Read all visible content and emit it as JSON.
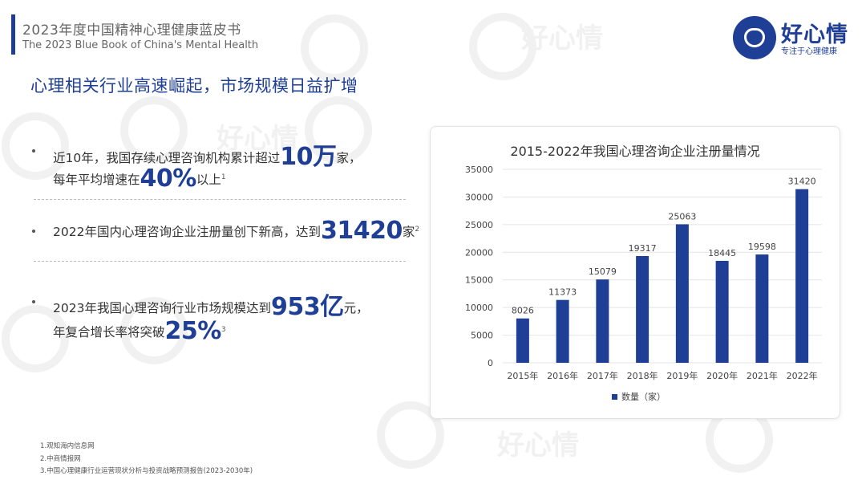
{
  "header": {
    "title_cn": "2023年度中国精神心理健康蓝皮书",
    "title_en": "The 2023 Blue Book of China's Mental Health"
  },
  "logo": {
    "name": "好心情",
    "slogan": "专注于心理健康"
  },
  "section_title": "心理相关行业高速崛起，市场规模日益扩增",
  "bullets": {
    "b1": {
      "l1_pre": "近10年，我国存续心理咨询机构累计超过",
      "l1_big": "10万",
      "l1_post": "家，",
      "l2_pre": "每年平均增速在",
      "l2_big": "40%",
      "l2_post": "以上",
      "l2_sup": "1"
    },
    "b2": {
      "pre": "2022年国内心理咨询企业注册量创下新高，达到",
      "big": "31420",
      "post": "家",
      "sup": "2"
    },
    "b3": {
      "l1_pre": "2023年我国心理咨询行业市场规模达到",
      "l1_big1": "953",
      "l1_big2": "亿",
      "l1_post": "元，",
      "l2_pre": "年复合增长率将突破",
      "l2_big": "25%",
      "l2_sup": "3"
    }
  },
  "footnotes": [
    "1.观知海内信息网",
    "2.中商情报网",
    "3.中国心理健康行业运营现状分析与投资战略预测报告(2023-2030年)"
  ],
  "chart_data": {
    "type": "bar",
    "title": "2015-2022年我国心理咨询企业注册量情况",
    "categories": [
      "2015年",
      "2016年",
      "2017年",
      "2018年",
      "2019年",
      "2020年",
      "2021年",
      "2022年"
    ],
    "series": [
      {
        "name": "数量（家）",
        "values": [
          8026,
          11373,
          15079,
          19317,
          25063,
          18445,
          19598,
          31420
        ]
      }
    ],
    "ylim": [
      0,
      35000
    ],
    "yticks": [
      0,
      5000,
      10000,
      15000,
      20000,
      25000,
      30000,
      35000
    ],
    "grid": true,
    "legend": "bottom",
    "bar_color": "#1f3f97"
  },
  "colors": {
    "brand": "#1f3f97"
  }
}
